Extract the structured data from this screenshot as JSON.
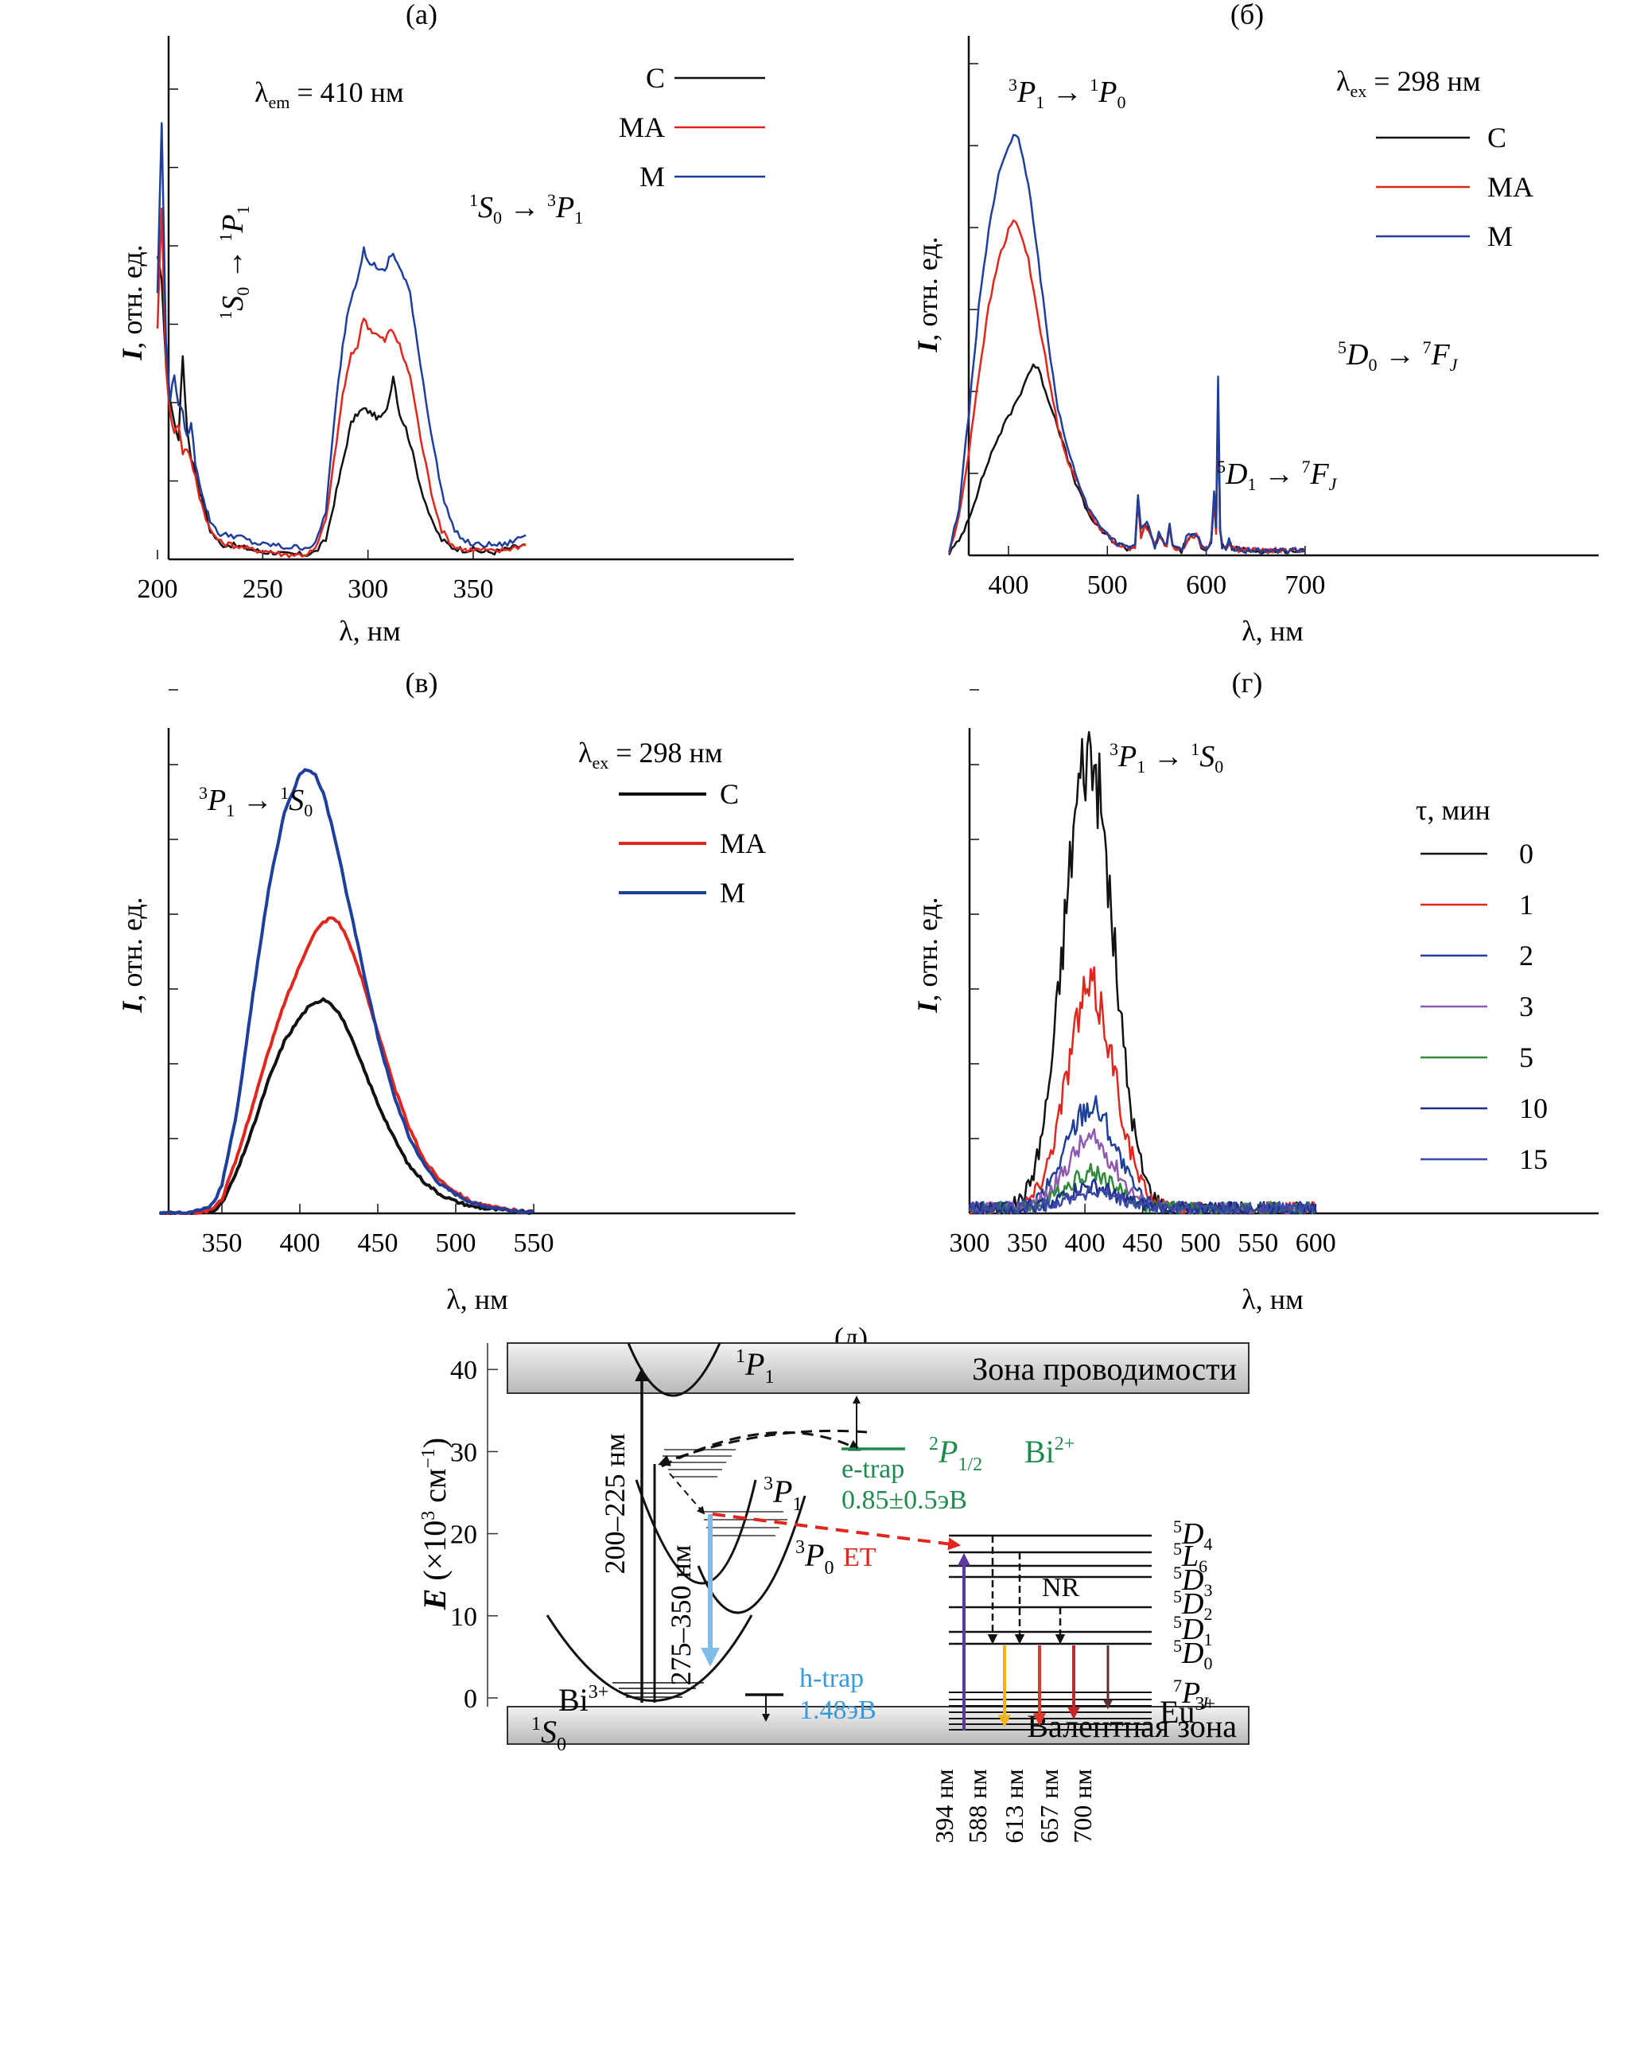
{
  "chart_data": [
    {
      "id": "a",
      "type": "line",
      "panel_label": "(а)",
      "title": "",
      "xlabel": "λ, нм",
      "ylabel": "I, отн. ед.",
      "xlim": [
        200,
        380
      ],
      "ylim": [
        0,
        100
      ],
      "xticks": [
        200,
        250,
        300,
        350
      ],
      "yticks_count": 6,
      "grid": false,
      "legend_position": "top-right",
      "annotations": [
        {
          "text": "λem = 410 нм",
          "main": "λ",
          "sub": "em",
          "rest": " = 410 нм"
        },
        {
          "text": "1S0 → 1P1",
          "rotated": true
        },
        {
          "text": "1S0 → 3P1"
        }
      ],
      "series": [
        {
          "name": "C",
          "color": "#111111",
          "x": [
            200,
            202,
            204,
            206,
            208,
            210,
            212,
            214,
            216,
            218,
            220,
            222,
            225,
            230,
            235,
            240,
            245,
            250,
            255,
            260,
            265,
            270,
            275,
            280,
            285,
            288,
            290,
            292,
            295,
            298,
            300,
            302,
            305,
            308,
            310,
            312,
            315,
            318,
            320,
            325,
            330,
            335,
            340,
            345,
            350,
            355,
            360,
            365,
            370,
            375
          ],
          "y": [
            62,
            58,
            40,
            33,
            28,
            25,
            42,
            27,
            21,
            18,
            14,
            11,
            6,
            3,
            3,
            2.5,
            2,
            1.5,
            1.5,
            1,
            1,
            1,
            1.5,
            4,
            14,
            20,
            24,
            28,
            30,
            31,
            30.5,
            30,
            29,
            30,
            33,
            38,
            30,
            27,
            24,
            15,
            8,
            4,
            2.5,
            2,
            2,
            1.5,
            1.5,
            2,
            2.5,
            3
          ]
        },
        {
          "name": "MA",
          "color": "#e0261d",
          "x": [
            200,
            202,
            204,
            206,
            208,
            210,
            212,
            214,
            216,
            218,
            220,
            222,
            225,
            230,
            235,
            240,
            245,
            250,
            255,
            260,
            265,
            270,
            275,
            280,
            285,
            288,
            290,
            292,
            295,
            298,
            300,
            302,
            305,
            308,
            310,
            312,
            315,
            318,
            320,
            325,
            330,
            335,
            340,
            345,
            350,
            355,
            360,
            365,
            370,
            375
          ],
          "y": [
            48,
            72,
            40,
            30,
            26,
            28,
            22,
            23,
            20,
            17,
            13,
            10,
            6,
            3.5,
            3,
            2.5,
            2,
            1.8,
            1.5,
            1,
            1,
            1,
            2,
            8,
            24,
            34,
            38,
            42,
            44,
            50,
            48,
            47,
            46,
            45,
            47,
            47,
            44,
            40,
            38,
            25,
            14,
            6,
            3,
            2,
            2,
            2,
            1.5,
            2,
            2.5,
            3
          ]
        },
        {
          "name": "M",
          "color": "#1f3f9c",
          "x": [
            200,
            202,
            204,
            206,
            208,
            210,
            212,
            214,
            216,
            218,
            220,
            222,
            225,
            230,
            235,
            240,
            245,
            250,
            255,
            260,
            265,
            270,
            275,
            280,
            285,
            288,
            290,
            292,
            295,
            298,
            300,
            302,
            305,
            308,
            310,
            312,
            315,
            318,
            320,
            325,
            330,
            335,
            340,
            345,
            350,
            355,
            360,
            365,
            370,
            375
          ],
          "y": [
            55,
            90,
            45,
            33,
            38,
            32,
            30,
            25,
            28,
            20,
            16,
            12,
            8,
            5,
            5,
            4.5,
            3.5,
            3,
            3,
            2.5,
            2.5,
            2.5,
            3,
            10,
            33,
            44,
            50,
            54,
            58,
            64,
            61,
            61,
            60,
            59,
            62,
            63,
            60,
            57,
            55,
            40,
            26,
            14,
            7,
            4,
            3,
            3,
            3,
            3,
            4,
            5
          ]
        }
      ]
    },
    {
      "id": "b",
      "type": "line",
      "panel_label": "(б)",
      "title": "",
      "xlabel": "λ, нм",
      "ylabel": "I, отн. ед.",
      "xlim": [
        340,
        720
      ],
      "ylim": [
        0,
        100
      ],
      "xticks": [
        400,
        500,
        600,
        700
      ],
      "yticks_count": 6,
      "grid": false,
      "legend_position": "top-right",
      "annotations": [
        {
          "text": "λex = 298 нм",
          "main": "λ",
          "sub": "ex",
          "rest": " = 298 нм"
        },
        {
          "text": "3P1 → 1P0"
        },
        {
          "text": "5D1 → 7FJ"
        },
        {
          "text": "5D0 → 7FJ"
        }
      ],
      "series": [
        {
          "name": "C",
          "color": "#111111",
          "x": [
            340,
            350,
            360,
            370,
            380,
            390,
            400,
            410,
            420,
            425,
            430,
            440,
            450,
            460,
            470,
            480,
            490,
            500,
            510,
            520,
            528,
            531,
            534,
            538,
            542,
            548,
            552,
            556,
            560,
            563,
            566,
            575,
            580,
            585,
            590,
            595,
            600,
            605,
            608,
            610,
            612,
            614,
            616,
            620,
            623,
            626,
            640,
            660,
            680,
            700
          ],
          "y": [
            0.5,
            3,
            8,
            14,
            20,
            25,
            29,
            33,
            38,
            40,
            39,
            33,
            27,
            20,
            14,
            9,
            6,
            4,
            2.5,
            1.5,
            2,
            12,
            4,
            6,
            5,
            2,
            4,
            3,
            2,
            6,
            2,
            1,
            3,
            4,
            4,
            2,
            1.5,
            3,
            12,
            5,
            33,
            5,
            2,
            1.5,
            3,
            1.5,
            1,
            1,
            1,
            1
          ]
        },
        {
          "name": "MA",
          "color": "#e0261d",
          "x": [
            340,
            350,
            360,
            370,
            380,
            390,
            400,
            405,
            410,
            420,
            430,
            440,
            450,
            460,
            470,
            480,
            490,
            500,
            510,
            520,
            528,
            531,
            534,
            538,
            542,
            548,
            552,
            556,
            560,
            563,
            566,
            575,
            580,
            585,
            590,
            595,
            600,
            605,
            608,
            610,
            612,
            614,
            616,
            620,
            623,
            626,
            640,
            660,
            680,
            700
          ],
          "y": [
            0.5,
            8,
            22,
            38,
            52,
            62,
            68,
            70,
            69,
            62,
            50,
            38,
            27,
            20,
            15,
            10,
            6.5,
            4,
            2.5,
            1.5,
            2,
            12,
            4,
            6,
            5,
            2,
            4,
            3,
            2,
            6,
            2,
            1,
            3,
            4,
            4,
            2,
            1.5,
            3,
            12,
            5,
            33,
            5,
            2,
            1.5,
            3,
            1.5,
            1,
            1,
            1,
            1
          ]
        },
        {
          "name": "M",
          "color": "#1f3f9c",
          "x": [
            340,
            350,
            360,
            370,
            380,
            390,
            400,
            405,
            410,
            420,
            430,
            440,
            450,
            460,
            470,
            480,
            490,
            500,
            510,
            520,
            528,
            531,
            534,
            538,
            542,
            548,
            552,
            556,
            560,
            563,
            566,
            575,
            580,
            585,
            590,
            595,
            600,
            605,
            608,
            610,
            612,
            614,
            616,
            620,
            623,
            626,
            640,
            660,
            680,
            700
          ],
          "y": [
            0.5,
            10,
            30,
            52,
            68,
            80,
            86,
            88,
            87,
            78,
            62,
            45,
            31,
            22,
            16,
            10,
            7,
            4.5,
            2.5,
            1.5,
            2,
            13,
            5,
            7,
            6,
            2,
            4.5,
            3.5,
            2,
            6.5,
            2,
            1,
            3.5,
            4.5,
            4.5,
            2,
            1.5,
            3,
            14,
            6,
            38,
            6,
            2,
            1.5,
            3,
            1.5,
            1,
            1,
            1,
            1
          ]
        }
      ]
    },
    {
      "id": "v",
      "type": "line",
      "panel_label": "(в)",
      "title": "",
      "xlabel": "λ, нм",
      "ylabel": "I, отн. ед.",
      "xlim": [
        310,
        555
      ],
      "ylim": [
        0,
        100
      ],
      "xticks": [
        350,
        400,
        450,
        500,
        550
      ],
      "yticks_count": 7,
      "grid": false,
      "legend_position": "top-right",
      "annotations": [
        {
          "text": "λex = 298 нм",
          "main": "λ",
          "sub": "ex",
          "rest": " = 298 нм"
        },
        {
          "text": "3P1 → 1S0"
        }
      ],
      "series": [
        {
          "name": "C",
          "color": "#111111",
          "x": [
            310,
            320,
            330,
            340,
            345,
            350,
            360,
            370,
            380,
            390,
            400,
            405,
            410,
            415,
            420,
            425,
            430,
            440,
            450,
            460,
            470,
            480,
            490,
            500,
            510,
            520,
            530,
            540,
            550
          ],
          "y": [
            0,
            0,
            0,
            0.3,
            0.8,
            2,
            9,
            18,
            28,
            36,
            41,
            43,
            44,
            45,
            44,
            42,
            39,
            31,
            23,
            16,
            10,
            6.5,
            4,
            2.5,
            1.5,
            1,
            0.7,
            0.4,
            0.2
          ]
        },
        {
          "name": "MA",
          "color": "#e0261d",
          "x": [
            310,
            320,
            330,
            340,
            345,
            350,
            360,
            370,
            380,
            390,
            400,
            405,
            410,
            415,
            420,
            425,
            430,
            440,
            450,
            460,
            470,
            480,
            490,
            500,
            510,
            520,
            530,
            540,
            550
          ],
          "y": [
            0,
            0,
            0,
            0.5,
            1.3,
            3,
            12,
            23,
            34,
            44,
            52,
            56,
            59,
            61,
            62,
            61,
            58,
            49,
            38,
            27,
            18,
            11,
            7,
            4.5,
            2.5,
            1.5,
            1,
            0.5,
            0.3
          ]
        },
        {
          "name": "M",
          "color": "#1f3f9c",
          "x": [
            310,
            320,
            330,
            340,
            345,
            350,
            360,
            370,
            380,
            390,
            400,
            405,
            410,
            415,
            420,
            425,
            430,
            440,
            450,
            460,
            470,
            480,
            490,
            500,
            510,
            520,
            530,
            540,
            550
          ],
          "y": [
            0,
            0,
            0.2,
            1,
            2.5,
            6,
            22,
            46,
            68,
            84,
            92,
            93,
            92,
            88,
            82,
            75,
            67,
            52,
            37,
            25,
            16,
            10,
            6,
            4,
            2.3,
            1.4,
            0.9,
            0.5,
            0.3
          ]
        }
      ]
    },
    {
      "id": "g",
      "type": "line",
      "panel_label": "(г)",
      "title": "",
      "xlabel": "λ, нм",
      "ylabel": "I, отн. ед.",
      "xlim": [
        300,
        610
      ],
      "ylim": [
        0,
        100
      ],
      "xticks": [
        300,
        350,
        400,
        450,
        500,
        550,
        600
      ],
      "yticks_count": 7,
      "grid": false,
      "legend_position": "right",
      "legend_title": "τ, мин",
      "annotations": [
        {
          "text": "3P1 → 1S0"
        }
      ],
      "series": [
        {
          "name": "0",
          "color": "#111111",
          "peak": 88,
          "width": 30,
          "center": 403
        },
        {
          "name": "1",
          "color": "#e0261d",
          "peak": 42,
          "width": 30,
          "center": 405
        },
        {
          "name": "2",
          "color": "#1f3f9c",
          "peak": 20,
          "width": 30,
          "center": 405
        },
        {
          "name": "3",
          "color": "#8e5bb0",
          "peak": 13,
          "width": 30,
          "center": 405
        },
        {
          "name": "5",
          "color": "#2f8a3a",
          "peak": 7,
          "width": 30,
          "center": 405
        },
        {
          "name": "10",
          "color": "#1d2f86",
          "peak": 4,
          "width": 32,
          "center": 405
        },
        {
          "name": "15",
          "color": "#3b4aa8",
          "peak": 3,
          "width": 32,
          "center": 405
        }
      ]
    }
  ],
  "diagram": {
    "panel_label": "(д)",
    "ylabel": "E (×10³ см⁻¹)",
    "ylabel_main": "E",
    "ylabel_rest": " (×10",
    "ylabel_sup": "3",
    "ylabel_unit": " см",
    "ylabel_unit_sup": "−1",
    "ylabel_close": ")",
    "yticks": [
      0,
      10,
      20,
      30,
      40
    ],
    "conduction_band": "Зона проводимости",
    "valence_band": "Валентная зона",
    "bi3_label": "Bi",
    "bi3_sup": "3+",
    "bi2_label": "Bi",
    "bi2_sup": "2+",
    "eu3_label": "Eu",
    "eu3_sup": "3+",
    "states_bi": [
      {
        "pre": "1",
        "main": "P",
        "sub": "1"
      },
      {
        "pre": "3",
        "main": "P",
        "sub": "1"
      },
      {
        "pre": "3",
        "main": "P",
        "sub": "0"
      },
      {
        "pre": "1",
        "main": "S",
        "sub": "0"
      },
      {
        "pre": "2",
        "main": "P",
        "sub": "1/2"
      }
    ],
    "states_eu": [
      {
        "pre": "5",
        "main": "D",
        "sub": "4"
      },
      {
        "pre": "5",
        "main": "L",
        "sub": "6"
      },
      {
        "pre": "5",
        "main": "D",
        "sub": "3"
      },
      {
        "pre": "5",
        "main": "D",
        "sub": "2"
      },
      {
        "pre": "5",
        "main": "D",
        "sub": "1"
      },
      {
        "pre": "5",
        "main": "D",
        "sub": "0"
      },
      {
        "pre": "7",
        "main": "P",
        "sub": "J"
      }
    ],
    "excitation_label": "200–225 нм",
    "emission_label": "275–350 нм",
    "e_trap_label": "e-trap",
    "e_trap_energy": "0.85±0.5эВ",
    "h_trap_label": "h-trap",
    "h_trap_energy": "1.48эВ",
    "et_label": "ET",
    "nr_label": "NR",
    "eu_transitions": [
      {
        "label": "394 нм",
        "color": "#5b3a9a"
      },
      {
        "label": "588 нм",
        "color": "#f2b21b"
      },
      {
        "label": "613 нм",
        "color": "#e2352b"
      },
      {
        "label": "657 нм",
        "color": "#c2262a"
      },
      {
        "label": "700 нм",
        "color": "#5a3035"
      }
    ],
    "colors": {
      "green": "#1e8a4c",
      "blue": "#3a9ad9",
      "red": "#e0261d"
    }
  }
}
